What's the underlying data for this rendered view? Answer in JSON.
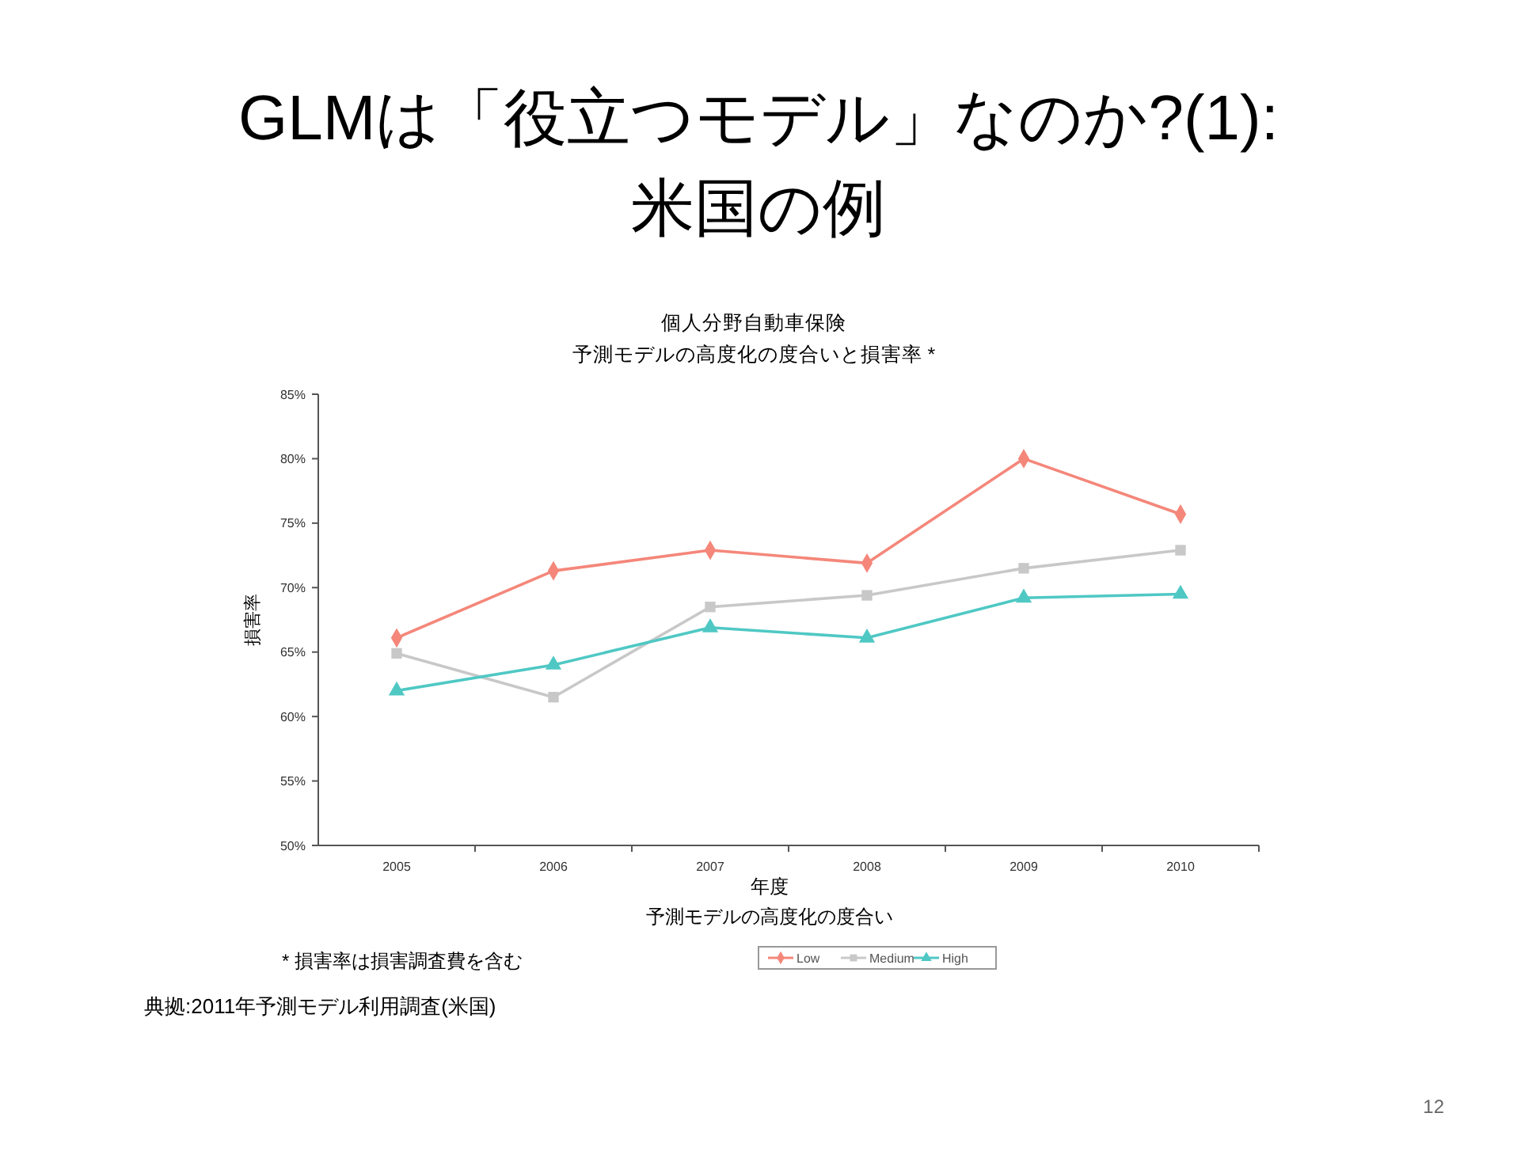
{
  "chart_data": {
    "type": "line",
    "title": "GLMは「役立つモデル」なのか?(1):\n米国の例",
    "subtitle": "個人分野自動車保険",
    "xlabel": "年度",
    "ylabel": "損害率",
    "legend_title": "予測モデルの高度化の度合い",
    "categories": [
      "2005",
      "2006",
      "2007",
      "2008",
      "2009",
      "2010"
    ],
    "series": [
      {
        "name": "Low",
        "color": "#f4877a",
        "marker": "diamond",
        "values": [
          66.1,
          71.3,
          72.9,
          71.9,
          80.0,
          75.7
        ]
      },
      {
        "name": "Medium",
        "color": "#c8c8c8",
        "marker": "square",
        "values": [
          64.9,
          61.5,
          68.5,
          69.4,
          71.5,
          72.9
        ]
      },
      {
        "name": "High",
        "color": "#4fc8c4",
        "marker": "triangle",
        "values": [
          62.0,
          64.0,
          66.9,
          66.1,
          69.2,
          69.5
        ]
      }
    ],
    "ylim": [
      50,
      85
    ],
    "yticks": [
      {
        "value": 50,
        "label": "50%"
      },
      {
        "value": 55,
        "label": "55%"
      },
      {
        "value": 60,
        "label": "60%"
      },
      {
        "value": 65,
        "label": "65%"
      },
      {
        "value": 70,
        "label": "70%"
      },
      {
        "value": 75,
        "label": "75%"
      },
      {
        "value": 80,
        "label": "80%"
      },
      {
        "value": 85,
        "label": "85%"
      }
    ],
    "grid": false,
    "legend": "bottom",
    "line_style": "solid",
    "annotations": [
      "予測モデルの高度化の度合いと損害率 *",
      "* 損害率は損害調査費を含む",
      "典拠:2011年予測モデル利用調査(米国)",
      "12"
    ]
  }
}
